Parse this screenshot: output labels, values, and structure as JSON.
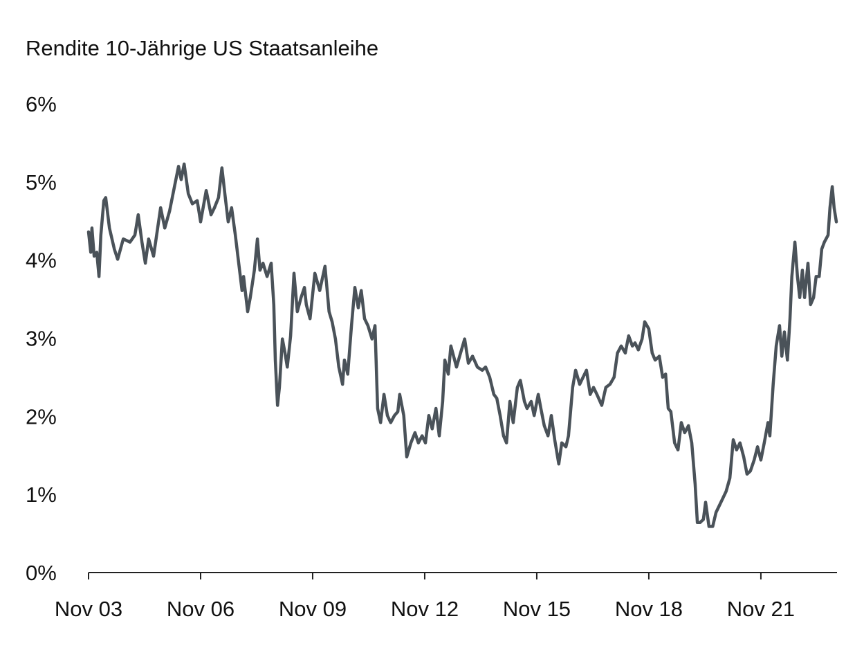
{
  "chart_data": {
    "type": "line",
    "title": "Rendite 10-Jährige US Staatsanleihe",
    "xlabel": "",
    "ylabel": "",
    "ylim": [
      0,
      6
    ],
    "xlim": [
      2003.83,
      2023.85
    ],
    "grid": false,
    "yticks": [
      {
        "value": 0,
        "label": "0%"
      },
      {
        "value": 1,
        "label": "1%"
      },
      {
        "value": 2,
        "label": "2%"
      },
      {
        "value": 3,
        "label": "3%"
      },
      {
        "value": 4,
        "label": "4%"
      },
      {
        "value": 5,
        "label": "5%"
      },
      {
        "value": 6,
        "label": "6%"
      }
    ],
    "xticks": [
      {
        "value": 2003.83,
        "label": "Nov 03"
      },
      {
        "value": 2006.83,
        "label": "Nov 06"
      },
      {
        "value": 2009.83,
        "label": "Nov 09"
      },
      {
        "value": 2012.83,
        "label": "Nov 12"
      },
      {
        "value": 2015.83,
        "label": "Nov 15"
      },
      {
        "value": 2018.83,
        "label": "Nov 18"
      },
      {
        "value": 2021.83,
        "label": "Nov 21"
      }
    ],
    "series": [
      {
        "name": "Rendite 10-Jährige US Staatsanleihe",
        "color": "#4a5259",
        "points": [
          [
            2003.83,
            4.36
          ],
          [
            2003.89,
            4.1
          ],
          [
            2003.92,
            4.41
          ],
          [
            2003.98,
            4.05
          ],
          [
            2004.05,
            4.1
          ],
          [
            2004.11,
            3.79
          ],
          [
            2004.16,
            4.32
          ],
          [
            2004.24,
            4.76
          ],
          [
            2004.29,
            4.8
          ],
          [
            2004.39,
            4.41
          ],
          [
            2004.52,
            4.14
          ],
          [
            2004.61,
            4.01
          ],
          [
            2004.76,
            4.27
          ],
          [
            2004.94,
            4.23
          ],
          [
            2005.07,
            4.32
          ],
          [
            2005.16,
            4.58
          ],
          [
            2005.26,
            4.23
          ],
          [
            2005.35,
            3.96
          ],
          [
            2005.44,
            4.27
          ],
          [
            2005.57,
            4.05
          ],
          [
            2005.68,
            4.41
          ],
          [
            2005.76,
            4.67
          ],
          [
            2005.87,
            4.41
          ],
          [
            2006.0,
            4.63
          ],
          [
            2006.13,
            4.94
          ],
          [
            2006.24,
            5.2
          ],
          [
            2006.31,
            5.03
          ],
          [
            2006.39,
            5.23
          ],
          [
            2006.5,
            4.85
          ],
          [
            2006.61,
            4.72
          ],
          [
            2006.74,
            4.76
          ],
          [
            2006.83,
            4.49
          ],
          [
            2006.98,
            4.89
          ],
          [
            2007.11,
            4.58
          ],
          [
            2007.2,
            4.67
          ],
          [
            2007.31,
            4.8
          ],
          [
            2007.4,
            5.18
          ],
          [
            2007.5,
            4.76
          ],
          [
            2007.57,
            4.49
          ],
          [
            2007.66,
            4.67
          ],
          [
            2007.76,
            4.32
          ],
          [
            2007.85,
            3.96
          ],
          [
            2007.94,
            3.61
          ],
          [
            2007.98,
            3.79
          ],
          [
            2008.09,
            3.34
          ],
          [
            2008.16,
            3.52
          ],
          [
            2008.27,
            3.87
          ],
          [
            2008.35,
            4.27
          ],
          [
            2008.42,
            3.87
          ],
          [
            2008.5,
            3.96
          ],
          [
            2008.61,
            3.79
          ],
          [
            2008.72,
            3.96
          ],
          [
            2008.79,
            3.43
          ],
          [
            2008.83,
            2.72
          ],
          [
            2008.89,
            2.14
          ],
          [
            2008.94,
            2.37
          ],
          [
            2009.02,
            2.99
          ],
          [
            2009.09,
            2.81
          ],
          [
            2009.15,
            2.63
          ],
          [
            2009.24,
            3.03
          ],
          [
            2009.33,
            3.83
          ],
          [
            2009.42,
            3.34
          ],
          [
            2009.52,
            3.52
          ],
          [
            2009.61,
            3.65
          ],
          [
            2009.66,
            3.43
          ],
          [
            2009.76,
            3.25
          ],
          [
            2009.89,
            3.83
          ],
          [
            2010.02,
            3.61
          ],
          [
            2010.16,
            3.92
          ],
          [
            2010.27,
            3.34
          ],
          [
            2010.35,
            3.21
          ],
          [
            2010.44,
            2.99
          ],
          [
            2010.53,
            2.63
          ],
          [
            2010.63,
            2.41
          ],
          [
            2010.68,
            2.72
          ],
          [
            2010.77,
            2.54
          ],
          [
            2010.87,
            3.16
          ],
          [
            2010.96,
            3.65
          ],
          [
            2011.05,
            3.39
          ],
          [
            2011.13,
            3.61
          ],
          [
            2011.22,
            3.25
          ],
          [
            2011.31,
            3.16
          ],
          [
            2011.42,
            2.99
          ],
          [
            2011.5,
            3.16
          ],
          [
            2011.57,
            2.1
          ],
          [
            2011.65,
            1.92
          ],
          [
            2011.74,
            2.28
          ],
          [
            2011.83,
            2.01
          ],
          [
            2011.92,
            1.92
          ],
          [
            2012.02,
            2.01
          ],
          [
            2012.11,
            2.06
          ],
          [
            2012.16,
            2.28
          ],
          [
            2012.27,
            2.01
          ],
          [
            2012.35,
            1.48
          ],
          [
            2012.46,
            1.66
          ],
          [
            2012.57,
            1.79
          ],
          [
            2012.66,
            1.66
          ],
          [
            2012.76,
            1.75
          ],
          [
            2012.85,
            1.66
          ],
          [
            2012.94,
            2.01
          ],
          [
            2013.03,
            1.84
          ],
          [
            2013.13,
            2.1
          ],
          [
            2013.22,
            1.75
          ],
          [
            2013.31,
            2.19
          ],
          [
            2013.37,
            2.72
          ],
          [
            2013.46,
            2.54
          ],
          [
            2013.53,
            2.9
          ],
          [
            2013.68,
            2.63
          ],
          [
            2013.79,
            2.81
          ],
          [
            2013.9,
            2.99
          ],
          [
            2014.0,
            2.68
          ],
          [
            2014.11,
            2.77
          ],
          [
            2014.24,
            2.63
          ],
          [
            2014.37,
            2.59
          ],
          [
            2014.46,
            2.63
          ],
          [
            2014.57,
            2.5
          ],
          [
            2014.68,
            2.28
          ],
          [
            2014.76,
            2.23
          ],
          [
            2014.85,
            2.01
          ],
          [
            2014.94,
            1.75
          ],
          [
            2015.02,
            1.66
          ],
          [
            2015.11,
            2.19
          ],
          [
            2015.2,
            1.92
          ],
          [
            2015.31,
            2.37
          ],
          [
            2015.39,
            2.46
          ],
          [
            2015.5,
            2.19
          ],
          [
            2015.57,
            2.1
          ],
          [
            2015.68,
            2.19
          ],
          [
            2015.76,
            2.01
          ],
          [
            2015.87,
            2.28
          ],
          [
            2015.94,
            2.1
          ],
          [
            2016.03,
            1.88
          ],
          [
            2016.13,
            1.75
          ],
          [
            2016.22,
            2.01
          ],
          [
            2016.31,
            1.7
          ],
          [
            2016.42,
            1.39
          ],
          [
            2016.5,
            1.66
          ],
          [
            2016.61,
            1.61
          ],
          [
            2016.68,
            1.75
          ],
          [
            2016.79,
            2.37
          ],
          [
            2016.87,
            2.59
          ],
          [
            2016.98,
            2.41
          ],
          [
            2017.07,
            2.5
          ],
          [
            2017.16,
            2.59
          ],
          [
            2017.26,
            2.28
          ],
          [
            2017.35,
            2.37
          ],
          [
            2017.44,
            2.28
          ],
          [
            2017.57,
            2.14
          ],
          [
            2017.68,
            2.37
          ],
          [
            2017.79,
            2.41
          ],
          [
            2017.9,
            2.5
          ],
          [
            2017.99,
            2.81
          ],
          [
            2018.09,
            2.9
          ],
          [
            2018.2,
            2.81
          ],
          [
            2018.29,
            3.03
          ],
          [
            2018.39,
            2.9
          ],
          [
            2018.46,
            2.94
          ],
          [
            2018.55,
            2.85
          ],
          [
            2018.65,
            2.99
          ],
          [
            2018.72,
            3.21
          ],
          [
            2018.83,
            3.12
          ],
          [
            2018.92,
            2.81
          ],
          [
            2019.0,
            2.72
          ],
          [
            2019.11,
            2.77
          ],
          [
            2019.2,
            2.5
          ],
          [
            2019.28,
            2.54
          ],
          [
            2019.35,
            2.1
          ],
          [
            2019.42,
            2.06
          ],
          [
            2019.52,
            1.66
          ],
          [
            2019.61,
            1.57
          ],
          [
            2019.7,
            1.92
          ],
          [
            2019.79,
            1.79
          ],
          [
            2019.89,
            1.88
          ],
          [
            2019.98,
            1.66
          ],
          [
            2020.07,
            1.13
          ],
          [
            2020.13,
            0.64
          ],
          [
            2020.2,
            0.64
          ],
          [
            2020.29,
            0.68
          ],
          [
            2020.35,
            0.9
          ],
          [
            2020.44,
            0.59
          ],
          [
            2020.54,
            0.59
          ],
          [
            2020.63,
            0.77
          ],
          [
            2020.72,
            0.86
          ],
          [
            2020.81,
            0.95
          ],
          [
            2020.9,
            1.04
          ],
          [
            2021.0,
            1.21
          ],
          [
            2021.09,
            1.7
          ],
          [
            2021.18,
            1.57
          ],
          [
            2021.27,
            1.66
          ],
          [
            2021.37,
            1.48
          ],
          [
            2021.46,
            1.26
          ],
          [
            2021.55,
            1.3
          ],
          [
            2021.65,
            1.44
          ],
          [
            2021.74,
            1.61
          ],
          [
            2021.83,
            1.44
          ],
          [
            2021.92,
            1.66
          ],
          [
            2022.02,
            1.92
          ],
          [
            2022.07,
            1.75
          ],
          [
            2022.16,
            2.41
          ],
          [
            2022.24,
            2.9
          ],
          [
            2022.33,
            3.16
          ],
          [
            2022.39,
            2.77
          ],
          [
            2022.46,
            3.08
          ],
          [
            2022.54,
            2.72
          ],
          [
            2022.61,
            3.25
          ],
          [
            2022.66,
            3.79
          ],
          [
            2022.74,
            4.23
          ],
          [
            2022.81,
            3.79
          ],
          [
            2022.87,
            3.52
          ],
          [
            2022.94,
            3.87
          ],
          [
            2023.0,
            3.52
          ],
          [
            2023.09,
            3.96
          ],
          [
            2023.16,
            3.43
          ],
          [
            2023.24,
            3.52
          ],
          [
            2023.31,
            3.79
          ],
          [
            2023.39,
            3.79
          ],
          [
            2023.46,
            4.14
          ],
          [
            2023.53,
            4.23
          ],
          [
            2023.63,
            4.32
          ],
          [
            2023.68,
            4.67
          ],
          [
            2023.74,
            4.94
          ],
          [
            2023.79,
            4.67
          ],
          [
            2023.85,
            4.49
          ]
        ]
      }
    ]
  }
}
